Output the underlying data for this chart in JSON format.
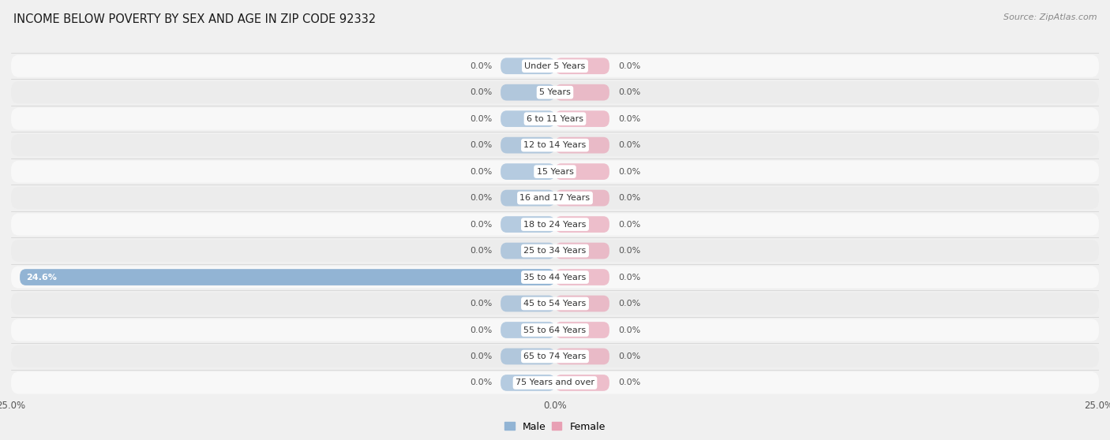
{
  "title": "INCOME BELOW POVERTY BY SEX AND AGE IN ZIP CODE 92332",
  "source": "Source: ZipAtlas.com",
  "categories": [
    "Under 5 Years",
    "5 Years",
    "6 to 11 Years",
    "12 to 14 Years",
    "15 Years",
    "16 and 17 Years",
    "18 to 24 Years",
    "25 to 34 Years",
    "35 to 44 Years",
    "45 to 54 Years",
    "55 to 64 Years",
    "65 to 74 Years",
    "75 Years and over"
  ],
  "male_values": [
    0.0,
    0.0,
    0.0,
    0.0,
    0.0,
    0.0,
    0.0,
    0.0,
    24.6,
    0.0,
    0.0,
    0.0,
    0.0
  ],
  "female_values": [
    0.0,
    0.0,
    0.0,
    0.0,
    0.0,
    0.0,
    0.0,
    0.0,
    0.0,
    0.0,
    0.0,
    0.0,
    0.0
  ],
  "male_color": "#92b4d4",
  "female_color": "#e8a0b4",
  "male_label": "Male",
  "female_label": "Female",
  "xlim": 25.0,
  "stub_value": 2.5,
  "fig_bg": "#f0f0f0",
  "row_colors": [
    "#f8f8f8",
    "#ececec"
  ],
  "title_fontsize": 10.5,
  "source_fontsize": 8,
  "value_fontsize": 8,
  "cat_fontsize": 8,
  "tick_fontsize": 8.5,
  "legend_fontsize": 9
}
